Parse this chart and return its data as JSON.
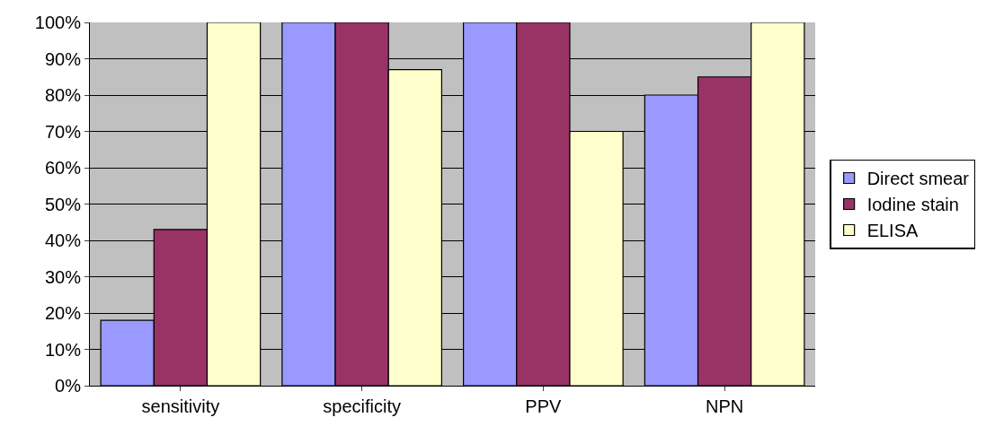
{
  "chart_data": {
    "type": "bar",
    "categories": [
      "sensitivity",
      "specificity",
      "PPV",
      "NPN"
    ],
    "series": [
      {
        "name": "Direct smear",
        "color": "#9999ff",
        "values": [
          18,
          100,
          100,
          80
        ]
      },
      {
        "name": "Iodine stain",
        "color": "#993366",
        "values": [
          43,
          100,
          100,
          85
        ]
      },
      {
        "name": "ELISA",
        "color": "#ffffcc",
        "values": [
          100,
          87,
          70,
          100
        ]
      }
    ],
    "ylim": [
      0,
      100
    ],
    "yticks": [
      {
        "value": 0,
        "label": "0%"
      },
      {
        "value": 10,
        "label": "10%"
      },
      {
        "value": 20,
        "label": "20%"
      },
      {
        "value": 30,
        "label": "30%"
      },
      {
        "value": 40,
        "label": "40%"
      },
      {
        "value": 50,
        "label": "50%"
      },
      {
        "value": 60,
        "label": "60%"
      },
      {
        "value": 70,
        "label": "70%"
      },
      {
        "value": 80,
        "label": "80%"
      },
      {
        "value": 90,
        "label": "90%"
      },
      {
        "value": 100,
        "label": "100%"
      }
    ],
    "grid": "y",
    "legend": "right"
  }
}
